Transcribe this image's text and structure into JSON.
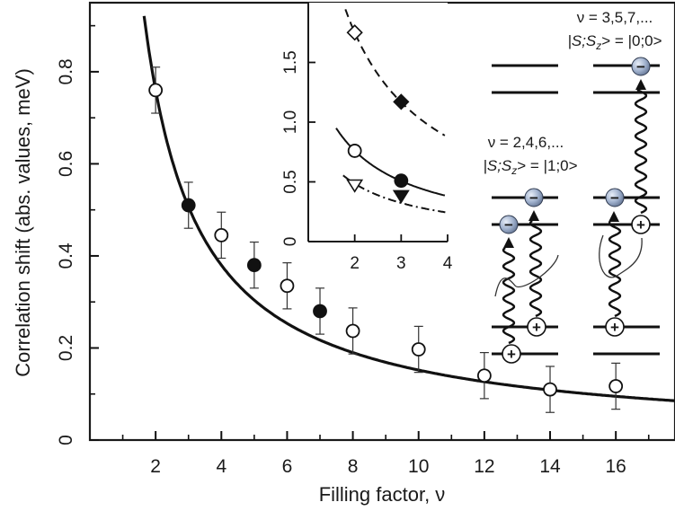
{
  "chart_data": [
    {
      "type": "scatter",
      "xlabel": "Filling factor, ν",
      "ylabel": "Correlation shift (abs. values, meV)",
      "xlim": [
        0,
        17.8
      ],
      "ylim": [
        0,
        0.95
      ],
      "xticks": [
        2,
        4,
        6,
        8,
        10,
        12,
        14,
        16
      ],
      "yticks": [
        0,
        0.2,
        0.4,
        0.6,
        0.8
      ],
      "xtick_labels": [
        "2",
        "4",
        "6",
        "8",
        "10",
        "12",
        "14",
        "16"
      ],
      "ytick_labels": [
        "0",
        "0.2",
        "0.4",
        "0.6",
        "0.8"
      ],
      "series": [
        {
          "marker": "open-circle",
          "points": [
            {
              "x": 2,
              "y": 0.76,
              "err": 0.05
            },
            {
              "x": 4,
              "y": 0.445,
              "err": 0.05
            },
            {
              "x": 6,
              "y": 0.335,
              "err": 0.05
            },
            {
              "x": 8,
              "y": 0.237,
              "err": 0.05
            },
            {
              "x": 10,
              "y": 0.197,
              "err": 0.05
            },
            {
              "x": 12,
              "y": 0.14,
              "err": 0.05
            },
            {
              "x": 14,
              "y": 0.11,
              "err": 0.05
            },
            {
              "x": 16,
              "y": 0.117,
              "err": 0.05
            }
          ]
        },
        {
          "marker": "filled-circle",
          "points": [
            {
              "x": 3,
              "y": 0.51,
              "err": 0.05
            },
            {
              "x": 5,
              "y": 0.38,
              "err": 0.05
            },
            {
              "x": 7,
              "y": 0.28,
              "err": 0.05
            }
          ]
        },
        {
          "style": "solid-curve",
          "formula": "1.52/x",
          "x_range": [
            1.65,
            17.8
          ]
        }
      ]
    },
    {
      "type": "scatter",
      "inset": true,
      "xlim": [
        1,
        4
      ],
      "ylim": [
        0,
        2.0
      ],
      "xticks": [
        2,
        3,
        4
      ],
      "yticks": [
        0,
        0.5,
        1.0,
        1.5
      ],
      "xtick_labels": [
        "2",
        "3",
        "4"
      ],
      "ytick_labels": [
        "0",
        "0.5",
        "1.0",
        "1.5"
      ],
      "series": [
        {
          "marker": "open-diamond",
          "points": [
            {
              "x": 2,
              "y": 1.75
            }
          ]
        },
        {
          "marker": "filled-diamond",
          "points": [
            {
              "x": 3,
              "y": 1.17
            }
          ]
        },
        {
          "marker": "open-circle",
          "points": [
            {
              "x": 2,
              "y": 0.76
            }
          ]
        },
        {
          "marker": "filled-circle",
          "points": [
            {
              "x": 3,
              "y": 0.51
            }
          ]
        },
        {
          "marker": "open-triangle-down",
          "points": [
            {
              "x": 2,
              "y": 0.47
            }
          ]
        },
        {
          "marker": "filled-triangle-down",
          "points": [
            {
              "x": 3,
              "y": 0.38
            }
          ]
        },
        {
          "style": "dashed-curve",
          "formula": "3.5/x",
          "x_range": [
            1.8,
            3.95
          ]
        },
        {
          "style": "solid-curve",
          "formula": "1.52/x",
          "x_range": [
            1.6,
            3.95
          ]
        },
        {
          "style": "dash-dot-curve",
          "formula": "0.97/x",
          "x_range": [
            1.75,
            3.95
          ]
        }
      ]
    }
  ],
  "diagram": {
    "left_label_line1": "ν = 2,4,6,...",
    "left_label_line2": "|S;S",
    "left_label_sub": "z",
    "left_label_tail": "> = |1;0>",
    "right_label_line1": "ν = 3,5,7,...",
    "right_label_line2": "|S;S",
    "right_label_sub": "z",
    "right_label_tail": "> = |0;0>",
    "electron_sign": "−",
    "hole_sign": "+"
  }
}
